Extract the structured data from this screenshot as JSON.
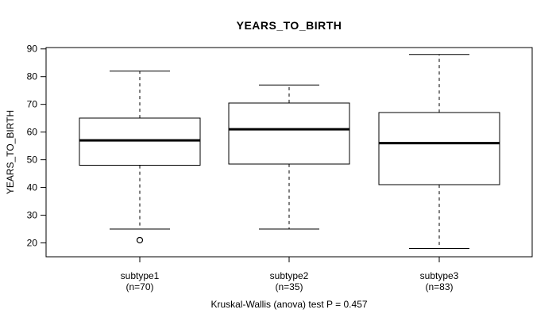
{
  "chart_data": {
    "type": "boxplot",
    "title": "YEARS_TO_BIRTH",
    "ylabel": "YEARS_TO_BIRTH",
    "footer": "Kruskal-Wallis (anova) test P = 0.457",
    "ylim": [
      15,
      90.5
    ],
    "yticks": [
      20,
      30,
      40,
      50,
      60,
      70,
      80,
      90
    ],
    "grid": false,
    "legend": "none",
    "groups": [
      {
        "label": "subtype1",
        "sublabel": "(n=70)",
        "n": 70,
        "whisker_low": 25,
        "q1": 48,
        "median": 57,
        "q3": 65,
        "whisker_high": 82,
        "outliers": [
          21
        ]
      },
      {
        "label": "subtype2",
        "sublabel": "(n=35)",
        "n": 35,
        "whisker_low": 25,
        "q1": 48.5,
        "median": 61,
        "q3": 70.5,
        "whisker_high": 77,
        "outliers": []
      },
      {
        "label": "subtype3",
        "sublabel": "(n=83)",
        "n": 83,
        "whisker_low": 18,
        "q1": 41,
        "median": 56,
        "q3": 67,
        "whisker_high": 88,
        "outliers": []
      }
    ],
    "colors": {
      "line": "#000000",
      "median": "#000000",
      "background": "#ffffff",
      "box_fill": "#ffffff"
    }
  }
}
